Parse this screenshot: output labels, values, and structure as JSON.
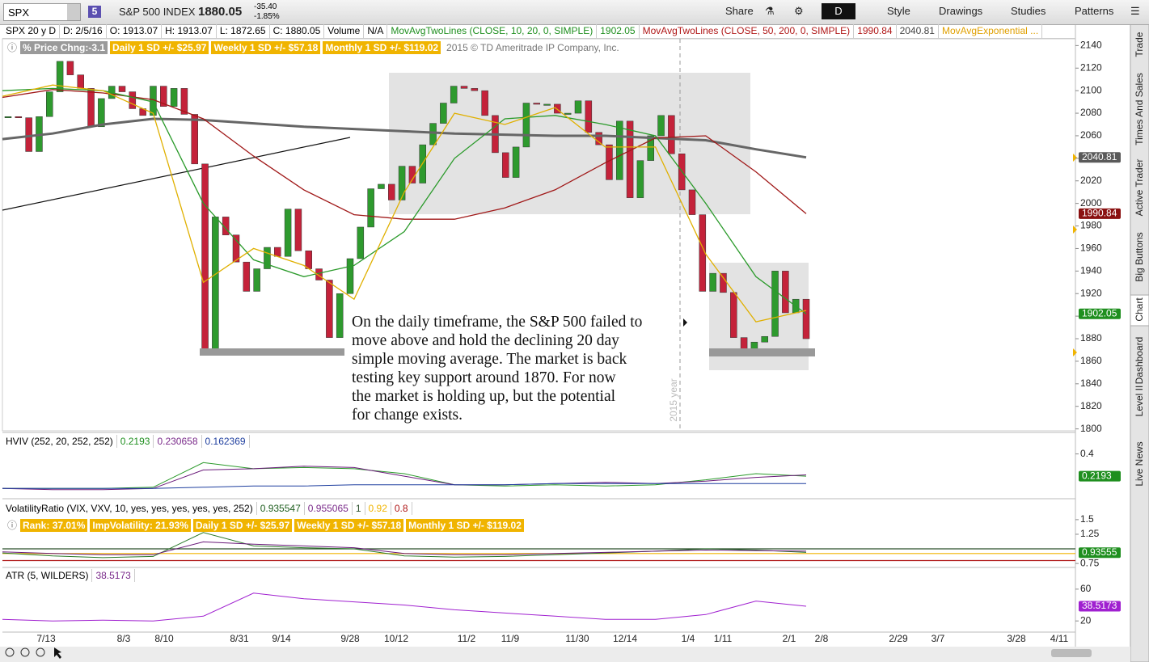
{
  "toolbar": {
    "symbol": "SPX",
    "badge": "5",
    "name": "S&P 500 INDEX",
    "last": "1880.05",
    "change": "-35.40",
    "change_pct": "-1.85%",
    "buttons": [
      "Share",
      "D",
      "Style",
      "Drawings",
      "Studies",
      "Patterns"
    ]
  },
  "info_bar": [
    {
      "text": "SPX 20 y D",
      "color": "#000"
    },
    {
      "text": "D: 2/5/16",
      "color": "#000"
    },
    {
      "text": "O: 1913.07",
      "color": "#000"
    },
    {
      "text": "H: 1913.07",
      "color": "#000"
    },
    {
      "text": "L: 1872.65",
      "color": "#000"
    },
    {
      "text": "C: 1880.05",
      "color": "#000"
    },
    {
      "text": "Volume",
      "color": "#000"
    },
    {
      "text": "N/A",
      "color": "#000"
    },
    {
      "text": "MovAvgTwoLines (CLOSE, 10, 20, 0, SIMPLE)",
      "color": "#1f8f1f"
    },
    {
      "text": "1902.05",
      "color": "#1f8f1f"
    },
    {
      "text": "MovAvgTwoLines (CLOSE, 50, 200, 0, SIMPLE)",
      "color": "#b01818"
    },
    {
      "text": "1990.84",
      "color": "#b01818"
    },
    {
      "text": "2040.81",
      "color": "#444"
    },
    {
      "text": "MovAvgExponential ...",
      "color": "#e0a000"
    }
  ],
  "study_bar": [
    {
      "text": "% Price Chng:-3.1",
      "bg": "#9a9a9a"
    },
    {
      "text": "Daily 1 SD +/- $25.97",
      "bg": "#f0b400"
    },
    {
      "text": "Weekly 1 SD +/- $57.18",
      "bg": "#f0b400"
    },
    {
      "text": "Monthly 1 SD +/- $119.02",
      "bg": "#f0b400"
    }
  ],
  "copyright": "2015 © TD Ameritrade IP Company, Inc.",
  "annotation": [
    "On the daily timeframe, the S&P 500 failed to",
    "move above and hold the declining 20 day",
    "simple moving average.  The market is back",
    "testing key support around 1870.  For now",
    "the market is holding up, but the potential",
    "for change exists."
  ],
  "year_label": "2015 year",
  "x_labels": [
    "7/13",
    "8/3",
    "8/10",
    "8/31",
    "9/14",
    "9/28",
    "10/12",
    "11/2",
    "11/9",
    "11/30",
    "12/14",
    "1/4",
    "1/11",
    "2/1",
    "2/8",
    "2/29",
    "3/7",
    "3/28",
    "4/11"
  ],
  "sidebar_tabs": [
    "Trade",
    "Times And Sales",
    "Active Trader",
    "Big Buttons",
    "Chart",
    "Dashboard",
    "Level II",
    "Live News"
  ],
  "chart_data": [
    {
      "type": "candlestick",
      "ylim": [
        1799,
        2146
      ],
      "yticks": [
        1800,
        1820,
        1840,
        1860,
        1880,
        1900,
        1920,
        1940,
        1960,
        1980,
        2000,
        2020,
        2040,
        2060,
        2080,
        2100,
        2120,
        2140
      ],
      "up_color": "#2e9a2e",
      "down_color": "#c4223a",
      "values": [
        2077,
        2076,
        2046,
        2077,
        2099,
        2126,
        2114,
        2102,
        2068,
        2093,
        2104,
        2099,
        2084,
        2078,
        2104,
        2086,
        2102,
        2079,
        2035,
        1868,
        1988,
        1972,
        1948,
        1922,
        1942,
        1961,
        1953,
        1995,
        1958,
        1942,
        1932,
        1881,
        1920,
        1951,
        1979,
        2013,
        2017,
        2003,
        2033,
        2018,
        2052,
        2071,
        2089,
        2104,
        2102,
        2100,
        2078,
        2045,
        2023,
        2050,
        2089,
        2088,
        2088,
        2080,
        2080,
        2091,
        2063,
        2052,
        2021,
        2073,
        2005,
        2038,
        2060,
        2078,
        2044,
        2012,
        1990,
        1922,
        1938,
        1921,
        1881,
        1868,
        1877,
        1882,
        1940,
        1903,
        1915,
        1880
      ],
      "series": [
        {
          "color": "#666666",
          "width": 3,
          "values": [
            2057,
            2062,
            2070,
            2075,
            2074,
            2071,
            2068,
            2066,
            2064,
            2062,
            2061,
            2060,
            2060,
            2058,
            2056,
            2048,
            2040.81
          ]
        },
        {
          "color": "#a01818",
          "width": 1.3,
          "values": [
            2094,
            2101,
            2098,
            2092,
            2075,
            2042,
            2012,
            1990,
            1986,
            1986,
            1996,
            2012,
            2036,
            2058,
            2060,
            2028,
            1990.84
          ]
        },
        {
          "color": "#2a9a2a",
          "width": 1.3,
          "values": [
            2100,
            2102,
            2100,
            2090,
            2000,
            1950,
            1935,
            1945,
            1975,
            2040,
            2075,
            2078,
            2070,
            2060,
            2000,
            1935,
            1902.05
          ]
        },
        {
          "color": "#e0b000",
          "width": 1.3,
          "values": [
            2095,
            2105,
            2100,
            2080,
            1930,
            1960,
            1945,
            1915,
            2010,
            2080,
            2070,
            2085,
            2050,
            2050,
            1955,
            1895,
            1905
          ]
        }
      ],
      "badges": [
        {
          "value": 2040.81,
          "color": "#5a5a5a"
        },
        {
          "value": 1990.84,
          "color": "#8a1010"
        },
        {
          "value": 1902.05,
          "color": "#1f8f1f"
        }
      ]
    },
    {
      "type": "line",
      "title": "HVIV (252, 20, 252, 252)",
      "legend_values": [
        {
          "value": 0.2193,
          "color": "#1f8f1f"
        },
        {
          "value": 0.230658,
          "color": "#7a2a8a"
        },
        {
          "value": 0.162369,
          "color": "#1f3f9f"
        }
      ],
      "ylim": [
        0.05,
        0.43
      ],
      "yticks": [
        0.4
      ],
      "series": [
        {
          "color": "#2a9a2a",
          "width": 1,
          "values": [
            0.12,
            0.12,
            0.12,
            0.13,
            0.33,
            0.28,
            0.29,
            0.28,
            0.24,
            0.15,
            0.14,
            0.15,
            0.14,
            0.15,
            0.19,
            0.24,
            0.22
          ]
        },
        {
          "color": "#6a1a7a",
          "width": 1,
          "values": [
            0.12,
            0.11,
            0.11,
            0.12,
            0.27,
            0.28,
            0.3,
            0.29,
            0.22,
            0.15,
            0.15,
            0.16,
            0.17,
            0.16,
            0.18,
            0.21,
            0.23
          ]
        },
        {
          "color": "#1f3f9f",
          "width": 1,
          "values": [
            0.12,
            0.12,
            0.12,
            0.12,
            0.13,
            0.14,
            0.14,
            0.15,
            0.15,
            0.15,
            0.15,
            0.16,
            0.16,
            0.16,
            0.16,
            0.16,
            0.16
          ]
        }
      ],
      "badges": [
        {
          "value": 0.2193,
          "color": "#1f8f1f"
        }
      ]
    },
    {
      "type": "line",
      "title": "VolatilityRatio (VIX, VXV, 10, yes, yes, yes, yes, yes, 252)",
      "legend_values": [
        {
          "value": 0.935547,
          "color": "#1f5f1f"
        },
        {
          "value": 0.955065,
          "color": "#7a2a8a"
        }
      ],
      "levels": [
        1,
        0.92,
        0.8
      ],
      "level_colors": [
        "#2b4f2b",
        "#f0b400",
        "#b01818"
      ],
      "study_bar": [
        "Rank: 37.01%",
        "ImpVolatility: 21.93%",
        "Daily 1 SD +/- $25.97",
        "Weekly 1 SD +/- $57.18",
        "Monthly 1 SD +/- $119.02"
      ],
      "ylim": [
        0.71,
        1.54
      ],
      "yticks": [
        1.5,
        1.25,
        0.75
      ],
      "series": [
        {
          "color": "#2a7a2a",
          "width": 1,
          "values": [
            0.93,
            0.88,
            0.85,
            0.87,
            1.28,
            1.05,
            1.02,
            1,
            0.88,
            0.86,
            0.87,
            0.9,
            0.93,
            0.96,
            1,
            0.98,
            0.94
          ]
        },
        {
          "color": "#6a1a7a",
          "width": 1,
          "values": [
            0.95,
            0.92,
            0.9,
            0.9,
            1.12,
            1.08,
            1.05,
            1.02,
            0.92,
            0.9,
            0.9,
            0.92,
            0.94,
            0.96,
            0.98,
            0.97,
            0.96
          ]
        }
      ],
      "badges": [
        {
          "value": 0.93555,
          "color": "#1f8f1f"
        }
      ]
    },
    {
      "type": "line",
      "title": "ATR (5, WILDERS)",
      "legend_values": [
        {
          "value": 38.5173,
          "color": "#7a2a8a"
        }
      ],
      "ylim": [
        8,
        67
      ],
      "yticks": [
        60,
        20
      ],
      "series": [
        {
          "color": "#a020d0",
          "width": 1,
          "values": [
            22,
            20,
            21,
            20,
            26,
            55,
            48,
            44,
            40,
            34,
            30,
            26,
            22,
            22,
            28,
            45,
            38.5
          ]
        }
      ],
      "badges": [
        {
          "value": 38.5173,
          "color": "#a020d0"
        }
      ]
    }
  ]
}
